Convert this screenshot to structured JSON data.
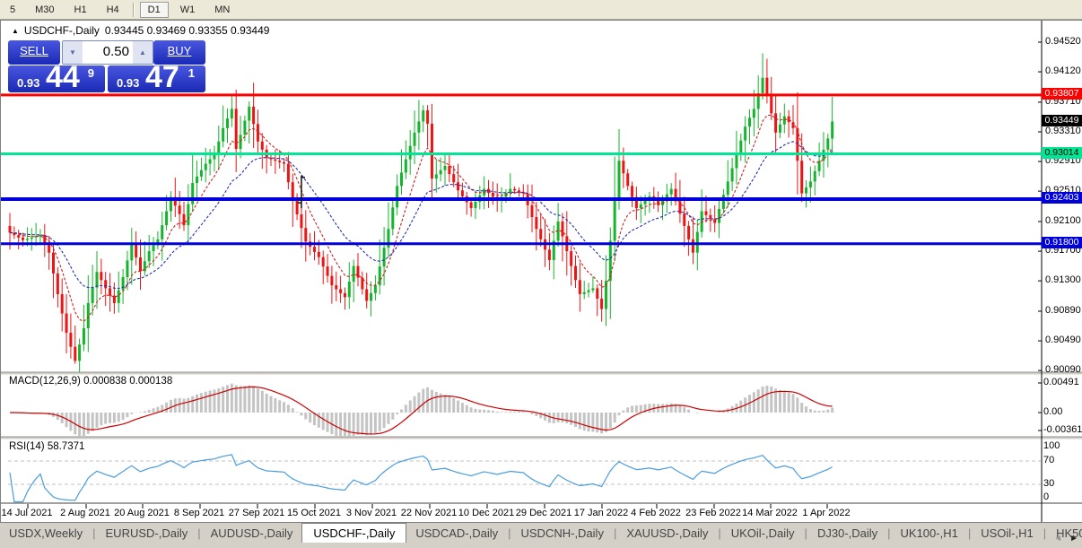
{
  "toolbar": {
    "periods": [
      {
        "label": "5",
        "active": false
      },
      {
        "label": "M30",
        "active": false
      },
      {
        "label": "H1",
        "active": false
      },
      {
        "label": "H4",
        "active": false
      },
      {
        "label": "D1",
        "active": true
      },
      {
        "label": "W1",
        "active": false
      },
      {
        "label": "MN",
        "active": false
      }
    ]
  },
  "chart": {
    "title": {
      "arrow": "▲",
      "symbol": "USDCHF-,Daily",
      "ohlc": "0.93445 0.93469 0.93355 0.93449"
    },
    "trade_panel": {
      "sell_label": "SELL",
      "buy_label": "BUY",
      "volume": "0.50",
      "down_arrow": "▼",
      "up_arrow": "▲",
      "sell_prefix": "0.93",
      "sell_big": "44",
      "sell_sup": "9",
      "buy_prefix": "0.93",
      "buy_big": "47",
      "buy_sup": "1"
    },
    "colors": {
      "up": "#14b42c",
      "down": "#ee1414",
      "ma_fast": "#cc2020",
      "ma_slow": "#2030b0",
      "hline_red": "#ff0000",
      "hline_green": "#00e695",
      "hline_blue": "#0000dd",
      "macd_hist": "#c4c4c4",
      "macd_signal": "#cc0000",
      "rsi_line": "#4a9ddf",
      "level_dash": "#c0c0c0"
    },
    "y_ticks": [
      {
        "label": "0.94520",
        "price": 0.9452
      },
      {
        "label": "0.94120",
        "price": 0.9412
      },
      {
        "label": "0.93710",
        "price": 0.9371
      },
      {
        "label": "0.93310",
        "price": 0.9331
      },
      {
        "label": "0.92910",
        "price": 0.9291
      },
      {
        "label": "0.92510",
        "price": 0.9251
      },
      {
        "label": "0.92100",
        "price": 0.921
      },
      {
        "label": "0.91700",
        "price": 0.917
      },
      {
        "label": "0.91300",
        "price": 0.913
      },
      {
        "label": "0.90890",
        "price": 0.9089
      },
      {
        "label": "0.90490",
        "price": 0.9049
      },
      {
        "label": "0.90090",
        "price": 0.9009
      }
    ],
    "price_labels": [
      {
        "label": "0.93807",
        "price": 0.93807,
        "bg": "#ff0000",
        "fg": "#ffffff"
      },
      {
        "label": "0.93449",
        "price": 0.93449,
        "bg": "#000000",
        "fg": "#ffffff"
      },
      {
        "label": "0.93014",
        "price": 0.93014,
        "bg": "#00e695",
        "fg": "#000000"
      },
      {
        "label": "0.92403",
        "price": 0.92403,
        "bg": "#0000dd",
        "fg": "#ffffff"
      },
      {
        "label": "0.91800",
        "price": 0.918,
        "bg": "#0000dd",
        "fg": "#ffffff"
      }
    ],
    "hlines": [
      {
        "price": 0.93807,
        "color": "#ff0000",
        "w": 3
      },
      {
        "price": 0.93014,
        "color": "#00e695",
        "w": 3
      },
      {
        "price": 0.92403,
        "color": "#0000dd",
        "w": 4
      },
      {
        "price": 0.918,
        "color": "#0000dd",
        "w": 3
      }
    ],
    "black_bar_marker": {
      "bar": 67,
      "price_top": 0.9272,
      "price_bottom": 0.9228
    },
    "bars": 190,
    "price_path": [
      [
        0,
        0.9195
      ],
      [
        3,
        0.9185
      ],
      [
        7,
        0.9192
      ],
      [
        9,
        0.9168
      ],
      [
        11,
        0.9112
      ],
      [
        13,
        0.906
      ],
      [
        15,
        0.9022
      ],
      [
        17,
        0.9066
      ],
      [
        18,
        0.91
      ],
      [
        20,
        0.9142
      ],
      [
        22,
        0.912
      ],
      [
        24,
        0.91
      ],
      [
        26,
        0.9135
      ],
      [
        28,
        0.918
      ],
      [
        30,
        0.9143
      ],
      [
        32,
        0.917
      ],
      [
        34,
        0.9186
      ],
      [
        37,
        0.9243
      ],
      [
        39,
        0.922
      ],
      [
        40,
        0.9205
      ],
      [
        42,
        0.9262
      ],
      [
        45,
        0.9288
      ],
      [
        47,
        0.93
      ],
      [
        49,
        0.9336
      ],
      [
        51,
        0.9362
      ],
      [
        52,
        0.9308
      ],
      [
        55,
        0.9365
      ],
      [
        57,
        0.9318
      ],
      [
        59,
        0.9296
      ],
      [
        63,
        0.9288
      ],
      [
        65,
        0.9238
      ],
      [
        68,
        0.9183
      ],
      [
        71,
        0.9162
      ],
      [
        74,
        0.9124
      ],
      [
        77,
        0.9108
      ],
      [
        79,
        0.915
      ],
      [
        82,
        0.9103
      ],
      [
        84,
        0.9124
      ],
      [
        87,
        0.92
      ],
      [
        89,
        0.9258
      ],
      [
        93,
        0.933
      ],
      [
        95,
        0.936
      ],
      [
        96,
        0.9342
      ],
      [
        97,
        0.9268
      ],
      [
        100,
        0.9285
      ],
      [
        103,
        0.9252
      ],
      [
        106,
        0.9228
      ],
      [
        109,
        0.9254
      ],
      [
        112,
        0.9238
      ],
      [
        115,
        0.9254
      ],
      [
        118,
        0.9248
      ],
      [
        121,
        0.92
      ],
      [
        124,
        0.9158
      ],
      [
        126,
        0.921
      ],
      [
        129,
        0.915
      ],
      [
        131,
        0.9112
      ],
      [
        134,
        0.912
      ],
      [
        136,
        0.9092
      ],
      [
        137,
        0.913
      ],
      [
        140,
        0.9292
      ],
      [
        142,
        0.9258
      ],
      [
        144,
        0.9228
      ],
      [
        147,
        0.9244
      ],
      [
        149,
        0.9232
      ],
      [
        152,
        0.9254
      ],
      [
        155,
        0.9204
      ],
      [
        157,
        0.9168
      ],
      [
        159,
        0.9224
      ],
      [
        162,
        0.9208
      ],
      [
        164,
        0.9246
      ],
      [
        166,
        0.9282
      ],
      [
        169,
        0.9338
      ],
      [
        171,
        0.9362
      ],
      [
        173,
        0.9404
      ],
      [
        175,
        0.9356
      ],
      [
        176,
        0.933
      ],
      [
        178,
        0.9352
      ],
      [
        180,
        0.9336
      ],
      [
        182,
        0.9248
      ],
      [
        184,
        0.9264
      ],
      [
        186,
        0.9292
      ],
      [
        188,
        0.9322
      ],
      [
        189,
        0.93449
      ]
    ],
    "wick_overrides": {
      "15": {
        "low": 0.9018
      },
      "55": {
        "high": 0.9372
      },
      "95": {
        "high": 0.9367
      },
      "173": {
        "high": 0.9437
      }
    }
  },
  "macd": {
    "label": "MACD(12,26,9) 0.000838 0.000138",
    "axis": [
      {
        "label": "0.00491",
        "y": 426
      },
      {
        "label": "0.00",
        "y": 459
      },
      {
        "label": "-0.00361",
        "y": 479
      }
    ]
  },
  "rsi": {
    "label": "RSI(14) 58.7371",
    "axis": [
      {
        "label": "100",
        "value": 100
      },
      {
        "label": "70",
        "value": 70
      },
      {
        "label": "30",
        "value": 30
      },
      {
        "label": "0",
        "value": 0
      }
    ],
    "levels": [
      70,
      30
    ]
  },
  "x_axis": {
    "dates": [
      "14 Jul 2021",
      "2 Aug 2021",
      "20 Aug 2021",
      "8 Sep 2021",
      "27 Sep 2021",
      "15 Oct 2021",
      "3 Nov 2021",
      "22 Nov 2021",
      "10 Dec 2021",
      "29 Dec 2021",
      "17 Jan 2022",
      "4 Feb 2022",
      "23 Feb 2022",
      "14 Mar 2022",
      "1 Apr 2022"
    ]
  },
  "tabs": {
    "separator": "|",
    "items": [
      "USDX,Weekly",
      "EURUSD-,Daily",
      "AUDUSD-,Daily",
      "USDCHF-,Daily",
      "USDCAD-,Daily",
      "USDCNH-,Daily",
      "XAUUSD-,Daily",
      "UKOil-,Daily",
      "DJ30-,Daily",
      "UK100-,H1",
      "USOil-,H1",
      "HK50-,H1"
    ],
    "active": "USDCHF-,Daily",
    "scroll_left": "◄",
    "scroll_right": "►"
  },
  "chart_data": {
    "type": "candlestick",
    "symbol": "USDCHF-",
    "timeframe": "Daily",
    "current_ohlc": {
      "open": 0.93445,
      "high": 0.93469,
      "low": 0.93355,
      "close": 0.93449
    },
    "bid": 0.93449,
    "ask": 0.93471,
    "y_range": [
      0.9009,
      0.9452
    ],
    "key_levels": {
      "resistance_red": 0.93807,
      "support_green": 0.93014,
      "support_blue_1": 0.92403,
      "support_blue_2": 0.918
    },
    "indicators": [
      {
        "name": "MACD",
        "params": [
          12,
          26,
          9
        ],
        "values": [
          0.000838,
          0.000138
        ],
        "axis_range": [
          -0.00361,
          0.00491
        ]
      },
      {
        "name": "RSI",
        "params": [
          14
        ],
        "value": 58.7371,
        "levels": [
          70,
          30
        ]
      }
    ],
    "x_tick_labels": [
      "14 Jul 2021",
      "2 Aug 2021",
      "20 Aug 2021",
      "8 Sep 2021",
      "27 Sep 2021",
      "15 Oct 2021",
      "3 Nov 2021",
      "22 Nov 2021",
      "10 Dec 2021",
      "29 Dec 2021",
      "17 Jan 2022",
      "4 Feb 2022",
      "23 Feb 2022",
      "14 Mar 2022",
      "1 Apr 2022"
    ],
    "note": "price_path holds approximate daily closes read from the chart"
  }
}
